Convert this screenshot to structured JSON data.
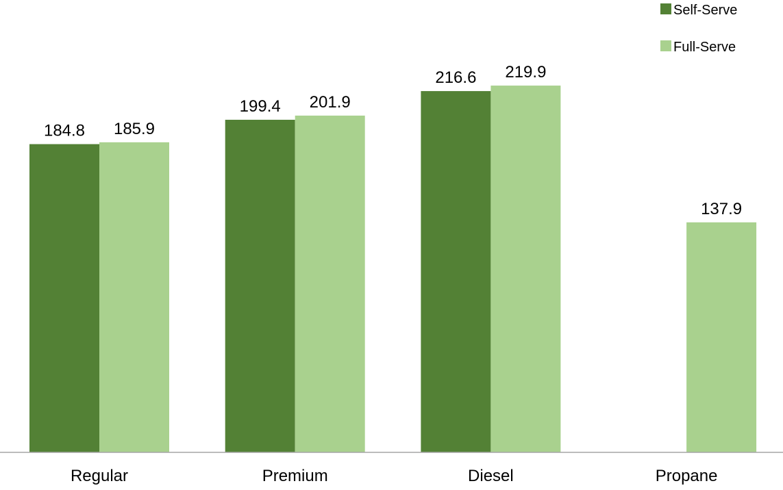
{
  "chart_data": {
    "type": "bar",
    "categories": [
      "Regular",
      "Premium",
      "Diesel",
      "Propane"
    ],
    "series": [
      {
        "name": "Self-Serve",
        "color": "#538135",
        "values": [
          184.8,
          199.4,
          216.6,
          null
        ]
      },
      {
        "name": "Full-Serve",
        "color": "#a9d18e",
        "values": [
          185.9,
          201.9,
          219.9,
          137.9
        ]
      }
    ],
    "title": "",
    "xlabel": "",
    "ylabel": "",
    "ylim": [
      0,
      250
    ],
    "grid": false,
    "legend_position": "top-right",
    "data_labels": true
  }
}
